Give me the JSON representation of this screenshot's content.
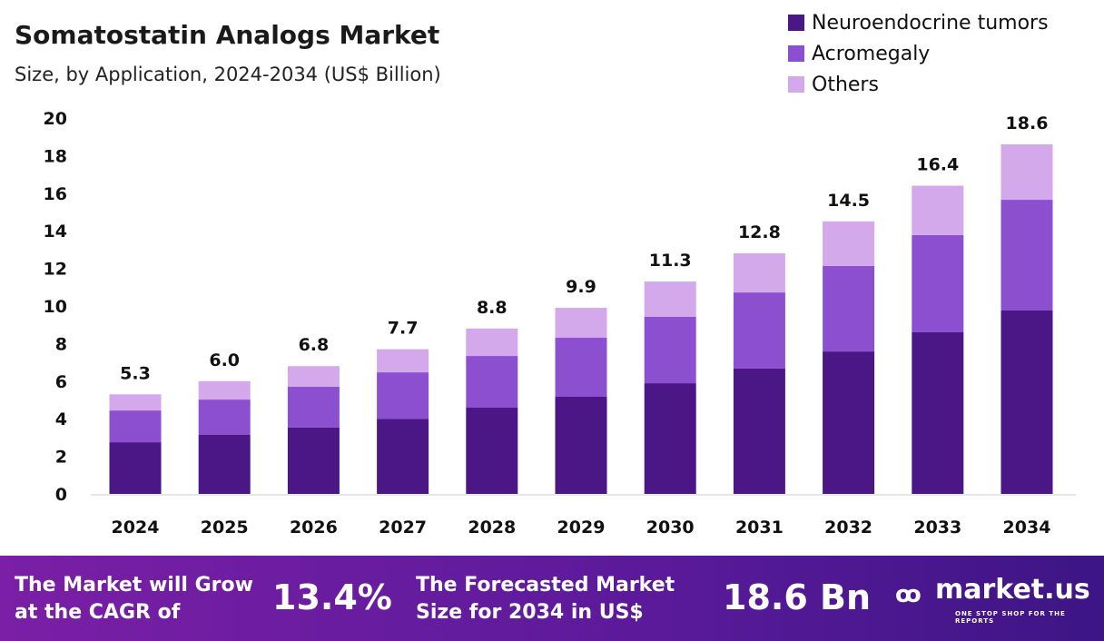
{
  "header": {
    "title": "Somatostatin Analogs Market",
    "subtitle": "Size, by Application, 2024-2034 (US$ Billion)"
  },
  "chart_data": {
    "type": "bar",
    "stacked": true,
    "categories": [
      "2024",
      "2025",
      "2026",
      "2027",
      "2028",
      "2029",
      "2030",
      "2031",
      "2032",
      "2033",
      "2034"
    ],
    "series": [
      {
        "name": "Neuroendocrine tumors",
        "color": "#4b1685",
        "values": [
          2.75,
          3.14,
          3.53,
          4.0,
          4.59,
          5.17,
          5.89,
          6.67,
          7.58,
          8.6,
          9.76
        ]
      },
      {
        "name": "Acromegaly",
        "color": "#8c4fd0",
        "values": [
          1.69,
          1.88,
          2.17,
          2.47,
          2.75,
          3.14,
          3.53,
          4.05,
          4.55,
          5.17,
          5.89
        ]
      },
      {
        "name": "Others",
        "color": "#d3a9ec",
        "values": [
          0.86,
          0.98,
          1.1,
          1.23,
          1.46,
          1.59,
          1.88,
          2.08,
          2.37,
          2.63,
          2.95
        ]
      }
    ],
    "totals": [
      "5.3",
      "6.0",
      "6.8",
      "7.7",
      "8.8",
      "9.9",
      "11.3",
      "12.8",
      "14.5",
      "16.4",
      "18.6"
    ],
    "yticks": [
      "0",
      "2",
      "4",
      "6",
      "8",
      "10",
      "12",
      "14",
      "16",
      "18",
      "20"
    ],
    "ylim": [
      0,
      20
    ],
    "grid": false,
    "legend": "top-right"
  },
  "footer": {
    "cagr_text_1": "The Market will Grow",
    "cagr_text_2": "at the CAGR of",
    "cagr_value": "13.4%",
    "forecast_text_1": "The Forecasted Market",
    "forecast_text_2": "Size for 2034 in US$",
    "forecast_value": "18.6 Bn",
    "logo": "market.us",
    "logo_tagline": "ONE STOP SHOP FOR THE REPORTS"
  }
}
